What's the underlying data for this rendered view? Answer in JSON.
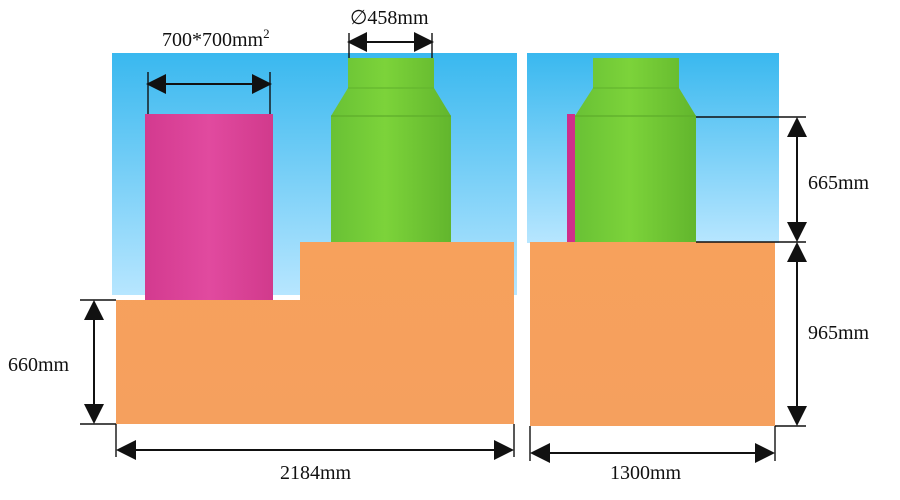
{
  "labels": {
    "square_size_base": "700*700mm",
    "square_size_exp": "2",
    "diameter": "∅458mm",
    "height_660": "660mm",
    "height_665": "665mm",
    "height_965": "965mm",
    "width_2184": "2184mm",
    "width_1300": "1300mm"
  },
  "colors": {
    "background_sky_top": "#39b8ef",
    "background_sky_bottom": "#b7e6ff",
    "orange_block": "#f7a15c",
    "pink_block": "#de3f97",
    "green_cylinder": "#78cf3a",
    "dimension_line": "#111111"
  }
}
